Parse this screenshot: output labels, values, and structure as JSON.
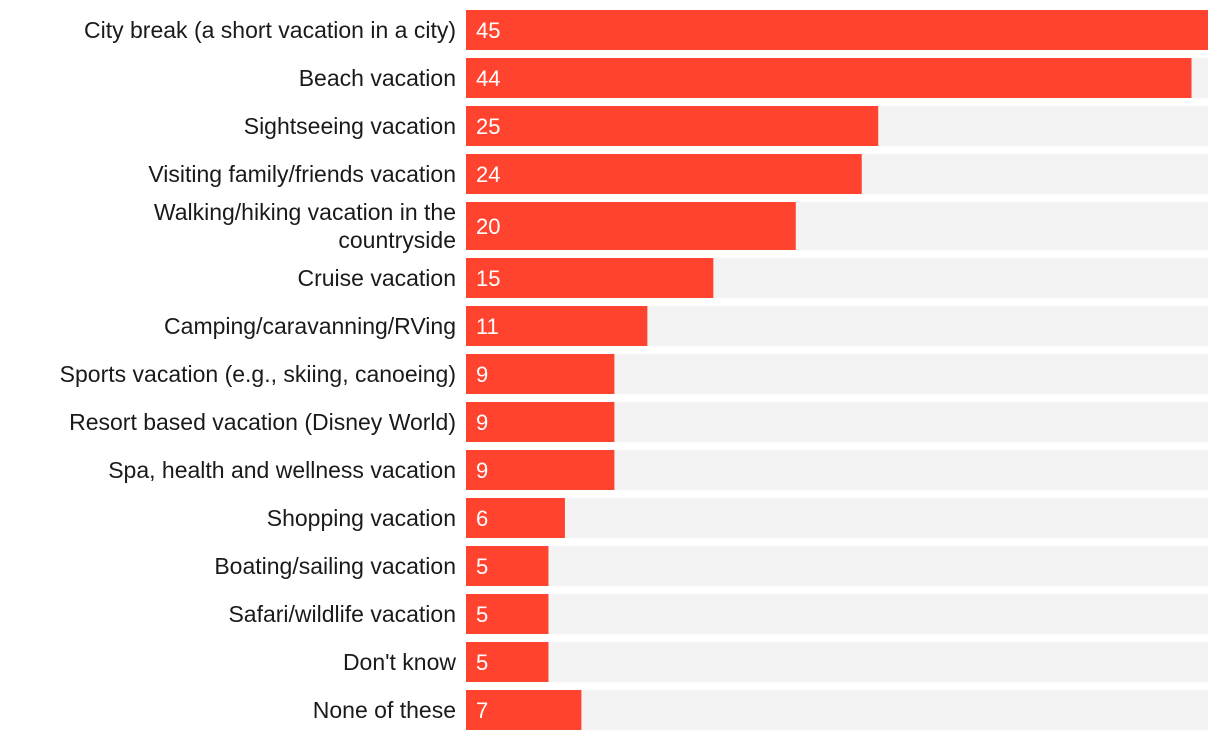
{
  "chart_data": {
    "type": "bar",
    "orientation": "horizontal",
    "title": "",
    "xlabel": "",
    "ylabel": "",
    "xlim": [
      0,
      45
    ],
    "grid": false,
    "legend": "none",
    "categories": [
      "City break (a short vacation in a city)",
      "Beach vacation",
      "Sightseeing vacation",
      "Visiting family/friends vacation",
      "Walking/hiking vacation in the countryside",
      "Cruise vacation",
      "Camping/caravanning/RVing",
      "Sports vacation (e.g., skiing, canoeing)",
      "Resort based vacation (Disney World)",
      "Spa, health and wellness vacation",
      "Shopping vacation",
      "Boating/sailing vacation",
      "Safari/wildlife vacation",
      "Don't know",
      "None of these"
    ],
    "label_lines": [
      [
        "City break (a short vacation in a city)"
      ],
      [
        "Beach vacation"
      ],
      [
        "Sightseeing vacation"
      ],
      [
        "Visiting family/friends vacation"
      ],
      [
        "Walking/hiking vacation in the",
        "countryside"
      ],
      [
        "Cruise vacation"
      ],
      [
        "Camping/caravanning/RVing"
      ],
      [
        "Sports vacation (e.g., skiing, canoeing)"
      ],
      [
        "Resort based vacation (Disney World)"
      ],
      [
        "Spa, health and wellness vacation"
      ],
      [
        "Shopping vacation"
      ],
      [
        "Boating/sailing vacation"
      ],
      [
        "Safari/wildlife vacation"
      ],
      [
        "Don't know"
      ],
      [
        "None of these"
      ]
    ],
    "values": [
      45,
      44,
      25,
      24,
      20,
      15,
      11,
      9,
      9,
      9,
      6,
      5,
      5,
      5,
      7
    ],
    "colors": {
      "bar": "#ff432e",
      "track": "#f3f3f3",
      "label": "#1a1a1a",
      "value_label": "#ffffff"
    }
  }
}
